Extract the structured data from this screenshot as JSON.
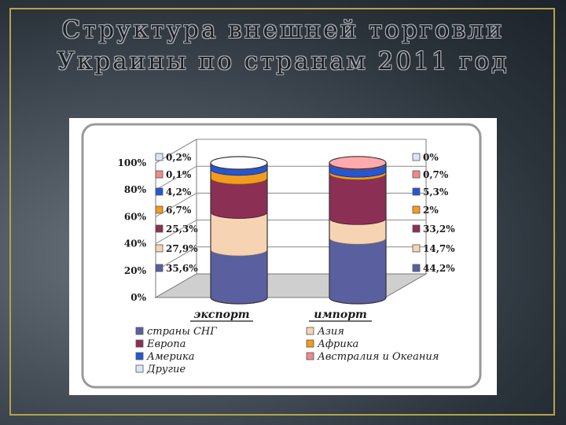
{
  "slide": {
    "title_line1": "Структура внешней торговли",
    "title_line2": "Украины по странам 2011 год"
  },
  "chart_data": {
    "type": "stacked_bar_3d",
    "categories": [
      "экспорт",
      "импорт"
    ],
    "yticks": [
      "0%",
      "20%",
      "40%",
      "60%",
      "80%",
      "100%"
    ],
    "ylim": [
      0,
      100
    ],
    "series": [
      {
        "name": "страны СНГ",
        "color": "#5a5fa0",
        "values": [
          35.6,
          44.2
        ],
        "labels": [
          "35,6%",
          "44,2%"
        ]
      },
      {
        "name": "Азия",
        "color": "#f6d3b3",
        "values": [
          27.9,
          14.7
        ],
        "labels": [
          "27,9%",
          "14,7%"
        ]
      },
      {
        "name": "Европа",
        "color": "#8c2f55",
        "values": [
          25.3,
          33.2
        ],
        "labels": [
          "25,3%",
          "33,2%"
        ]
      },
      {
        "name": "Африка",
        "color": "#f29b1c",
        "values": [
          6.7,
          2.0
        ],
        "labels": [
          "6,7%",
          "2%"
        ]
      },
      {
        "name": "Америка",
        "color": "#2456d6",
        "values": [
          4.2,
          5.3
        ],
        "labels": [
          "4,2%",
          "5,3%"
        ]
      },
      {
        "name": "Австралия и Океания",
        "color": "#f0888a",
        "values": [
          0.1,
          0.7
        ],
        "labels": [
          "0,1%",
          "0,7%"
        ]
      },
      {
        "name": "Другие",
        "color": "#d9e6f7",
        "values": [
          0.2,
          0.0
        ],
        "labels": [
          "0,2%",
          "0%"
        ]
      }
    ],
    "legend_order": [
      [
        "страны СНГ",
        "Азия"
      ],
      [
        "Европа",
        "Африка"
      ],
      [
        "Америка",
        "Австралия и Океания"
      ],
      [
        "Другие"
      ]
    ],
    "grid": true,
    "legend_position": "bottom"
  }
}
